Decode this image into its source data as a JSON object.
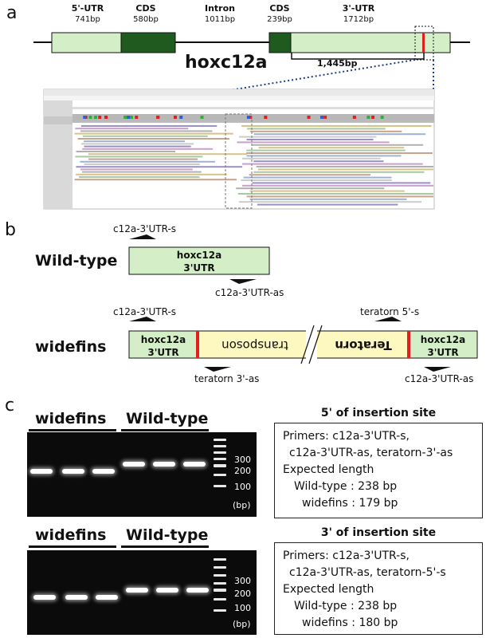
{
  "panel_a": {
    "letter": "a",
    "gene_name": "hoxc12a",
    "segments": [
      {
        "name": "5'-UTR",
        "size": "741bp"
      },
      {
        "name": "CDS",
        "size": "580bp"
      },
      {
        "name": "Intron",
        "size": "1011bp"
      },
      {
        "name": "CDS",
        "size": "239bp"
      },
      {
        "name": "3'-UTR",
        "size": "1712bp"
      }
    ],
    "distance_label": "1,445bp",
    "colors": {
      "utr": "#d4efc7",
      "cds": "#1f5a1f",
      "insertion": "#e31e1e"
    }
  },
  "panel_b": {
    "letter": "b",
    "wildtype": {
      "title": "Wild-type",
      "box_line1": "hoxc12a",
      "box_line2": "3'UTR",
      "primer_fwd": "c12a-3'UTR-s",
      "primer_rev": "c12a-3'UTR-as"
    },
    "widefins": {
      "title": "widefins",
      "left_line1": "hoxc12a",
      "left_line2": "3'UTR",
      "transposon": "transposon",
      "teratorn": "Teratorn",
      "right_line1": "hoxc12a",
      "right_line2": "3'UTR",
      "primer_fwd": "c12a-3'UTR-s",
      "primer_teratorn_s": "teratorn 5'-s",
      "primer_teratorn_as": "teratorn 3'-as",
      "primer_rev": "c12a-3'UTR-as"
    },
    "colors": {
      "utr": "#d4efc7",
      "insert": "#fdf8bf",
      "junction": "#e31e1e"
    }
  },
  "panel_c": {
    "letter": "c",
    "gels": [
      {
        "lane_widefins": "widefins",
        "lane_wildtype": "Wild-type",
        "ladder_labels": [
          "300",
          "200",
          "100",
          "(bp)"
        ],
        "title": "5' of insertion site",
        "lines": [
          "Primers: c12a-3'UTR-s,",
          "c12a-3'UTR-as, teratorn-3'-as",
          "Expected length",
          "Wild-type : 238 bp",
          "widefins : 179 bp"
        ]
      },
      {
        "lane_widefins": "widefins",
        "lane_wildtype": "Wild-type",
        "ladder_labels": [
          "300",
          "200",
          "100",
          "(bp)"
        ],
        "title": "3' of insertion site",
        "lines": [
          "Primers: c12a-3'UTR-s,",
          "c12a-3'UTR-as, teratorn-5'-s",
          "Expected length",
          "Wild-type : 238 bp",
          "widefins : 180 bp"
        ]
      }
    ]
  }
}
